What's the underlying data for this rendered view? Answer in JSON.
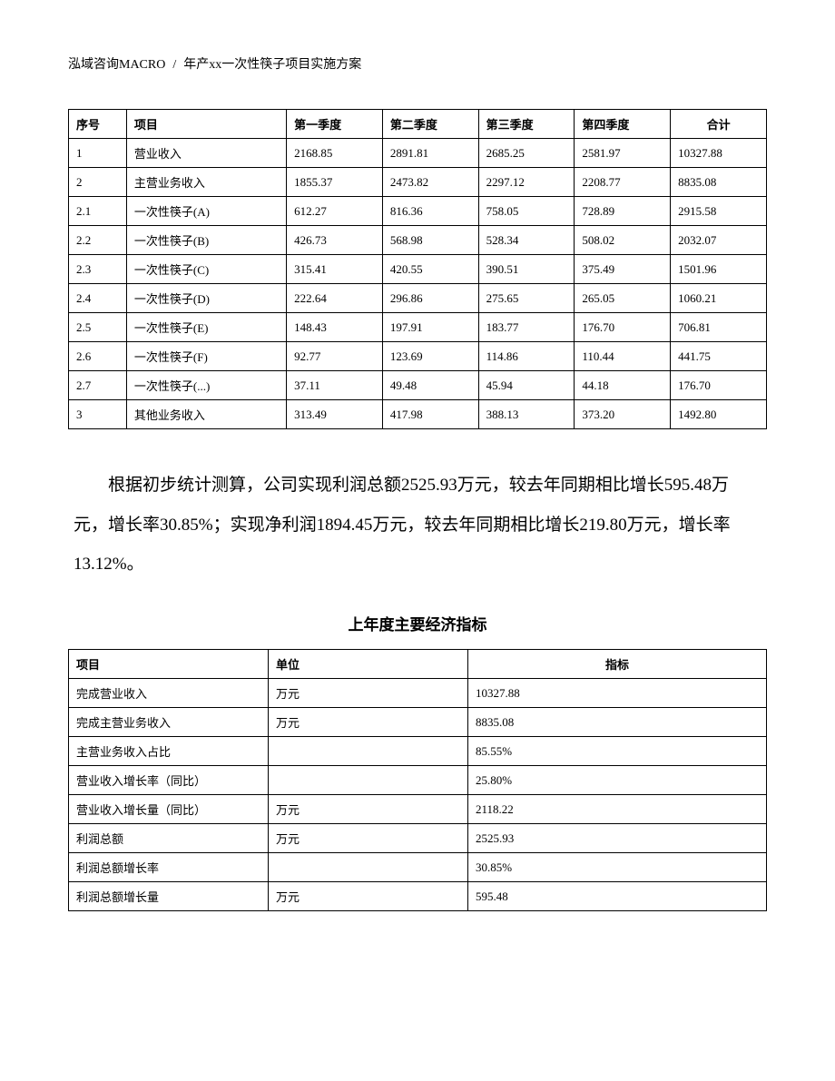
{
  "header": {
    "left": "泓域咨询MACRO",
    "slash": "/",
    "right": "年产xx一次性筷子项目实施方案"
  },
  "table1": {
    "type": "table",
    "columns": [
      "序号",
      "项目",
      "第一季度",
      "第二季度",
      "第三季度",
      "第四季度",
      "合计"
    ],
    "rows": [
      [
        "1",
        "营业收入",
        "2168.85",
        "2891.81",
        "2685.25",
        "2581.97",
        "10327.88"
      ],
      [
        "2",
        "主营业务收入",
        "1855.37",
        "2473.82",
        "2297.12",
        "2208.77",
        "8835.08"
      ],
      [
        "2.1",
        "一次性筷子(A)",
        "612.27",
        "816.36",
        "758.05",
        "728.89",
        "2915.58"
      ],
      [
        "2.2",
        "一次性筷子(B)",
        "426.73",
        "568.98",
        "528.34",
        "508.02",
        "2032.07"
      ],
      [
        "2.3",
        "一次性筷子(C)",
        "315.41",
        "420.55",
        "390.51",
        "375.49",
        "1501.96"
      ],
      [
        "2.4",
        "一次性筷子(D)",
        "222.64",
        "296.86",
        "275.65",
        "265.05",
        "1060.21"
      ],
      [
        "2.5",
        "一次性筷子(E)",
        "148.43",
        "197.91",
        "183.77",
        "176.70",
        "706.81"
      ],
      [
        "2.6",
        "一次性筷子(F)",
        "92.77",
        "123.69",
        "114.86",
        "110.44",
        "441.75"
      ],
      [
        "2.7",
        "一次性筷子(...)",
        "37.11",
        "49.48",
        "45.94",
        "44.18",
        "176.70"
      ],
      [
        "3",
        "其他业务收入",
        "313.49",
        "417.98",
        "388.13",
        "373.20",
        "1492.80"
      ]
    ]
  },
  "paragraph": "根据初步统计测算，公司实现利润总额2525.93万元，较去年同期相比增长595.48万元，增长率30.85%；实现净利润1894.45万元，较去年同期相比增长219.80万元，增长率13.12%。",
  "table2_title": "上年度主要经济指标",
  "table2": {
    "type": "table",
    "columns": [
      "项目",
      "单位",
      "指标"
    ],
    "rows": [
      [
        "完成营业收入",
        "万元",
        "10327.88"
      ],
      [
        "完成主营业务收入",
        "万元",
        "8835.08"
      ],
      [
        "主营业务收入占比",
        "",
        "85.55%"
      ],
      [
        "营业收入增长率（同比）",
        "",
        "25.80%"
      ],
      [
        "营业收入增长量（同比）",
        "万元",
        "2118.22"
      ],
      [
        "利润总额",
        "万元",
        "2525.93"
      ],
      [
        "利润总额增长率",
        "",
        "30.85%"
      ],
      [
        "利润总额增长量",
        "万元",
        "595.48"
      ]
    ]
  }
}
